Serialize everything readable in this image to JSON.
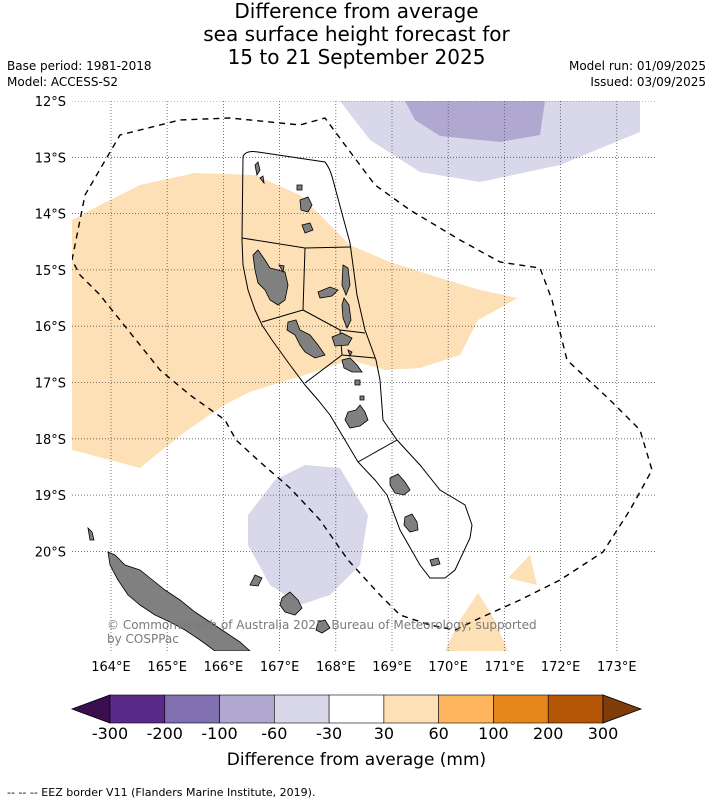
{
  "title": {
    "line1": "Difference from average",
    "line2": "sea surface height forecast for",
    "line3": "15 to 21 September 2025"
  },
  "meta": {
    "base_period": "Base period: 1981-2018",
    "model": "Model: ACCESS-S2",
    "model_run": "Model run: 01/09/2025",
    "issued": "Issued: 03/09/2025"
  },
  "map": {
    "lat_labels": [
      "12°S",
      "13°S",
      "14°S",
      "15°S",
      "16°S",
      "17°S",
      "18°S",
      "19°S",
      "20°S"
    ],
    "lon_labels": [
      "164°E",
      "165°E",
      "166°E",
      "167°E",
      "168°E",
      "169°E",
      "170°E",
      "171°E",
      "172°E",
      "173°E"
    ],
    "copyright_line1": "© Commonwealth of Australia 2025, Bureau of Meteorology, supported",
    "copyright_line2": "by COSPPac"
  },
  "colorbar": {
    "ticks": [
      "-300",
      "-200",
      "-100",
      "-60",
      "-30",
      "30",
      "60",
      "100",
      "200",
      "300"
    ],
    "colors": [
      "#3b0f4f",
      "#5a2a8a",
      "#8070b0",
      "#b0a8d0",
      "#d8d8ea",
      "#ffffff",
      "#fde0b5",
      "#fdb65e",
      "#e5861a",
      "#b45606",
      "#7f3b08"
    ],
    "label": "Difference from average (mm)"
  },
  "footnote": "--  --  -- EEZ border V11 (Flanders Marine Institute, 2019)."
}
